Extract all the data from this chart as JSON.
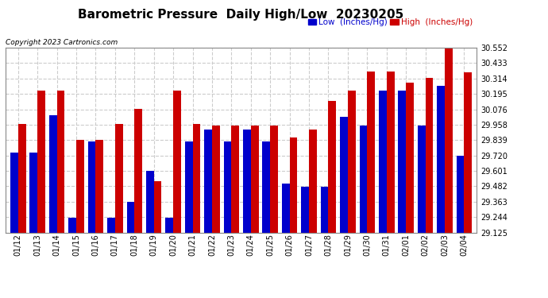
{
  "title": "Barometric Pressure  Daily High/Low  20230205",
  "copyright": "Copyright 2023 Cartronics.com",
  "legend_low": "Low  (Inches/Hg)",
  "legend_high": "High  (Inches/Hg)",
  "dates": [
    "01/12",
    "01/13",
    "01/14",
    "01/15",
    "01/16",
    "01/17",
    "01/18",
    "01/19",
    "01/20",
    "01/21",
    "01/22",
    "01/23",
    "01/24",
    "01/25",
    "01/26",
    "01/27",
    "01/28",
    "01/29",
    "01/30",
    "01/31",
    "02/01",
    "02/02",
    "02/03",
    "02/04"
  ],
  "low_values": [
    29.74,
    29.74,
    30.03,
    29.24,
    29.83,
    29.24,
    29.36,
    29.6,
    29.24,
    29.83,
    29.92,
    29.83,
    29.92,
    29.83,
    29.5,
    29.48,
    29.48,
    30.02,
    29.95,
    30.22,
    30.22,
    29.95,
    30.26,
    29.72
  ],
  "high_values": [
    29.96,
    30.22,
    30.22,
    29.84,
    29.84,
    29.96,
    30.08,
    29.52,
    30.22,
    29.96,
    29.95,
    29.95,
    29.95,
    29.95,
    29.86,
    29.92,
    30.14,
    30.22,
    30.37,
    30.37,
    30.28,
    30.32,
    30.55,
    30.36
  ],
  "bar_low_color": "#0000cc",
  "bar_high_color": "#cc0000",
  "background_color": "#ffffff",
  "grid_color": "#cccccc",
  "ylim_min": 29.125,
  "ylim_max": 30.552,
  "yticks": [
    29.125,
    29.244,
    29.363,
    29.482,
    29.601,
    29.72,
    29.839,
    29.958,
    30.076,
    30.195,
    30.314,
    30.433,
    30.552
  ],
  "title_fontsize": 11,
  "tick_fontsize": 7,
  "copyright_fontsize": 6.5
}
